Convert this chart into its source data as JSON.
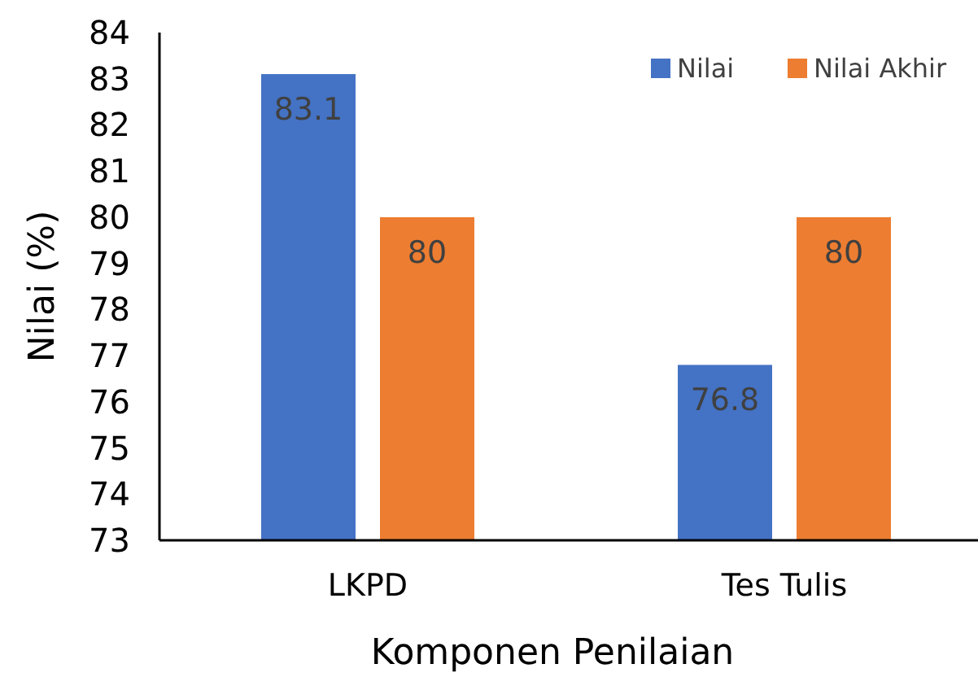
{
  "chart_data": {
    "type": "bar",
    "xlabel": "Komponen Penilaian",
    "ylabel": "Nilai (%)",
    "categories": [
      "LKPD",
      "Tes Tulis"
    ],
    "series": [
      {
        "name": "Nilai",
        "color": "#4472c4",
        "values": [
          83.1,
          76.8
        ]
      },
      {
        "name": "Nilai Akhir",
        "color": "#ed7d31",
        "values": [
          80,
          80
        ]
      }
    ],
    "ylim": [
      73,
      84
    ],
    "yticks": [
      73,
      74,
      75,
      76,
      77,
      78,
      79,
      80,
      81,
      82,
      83,
      84
    ],
    "grid": false,
    "legend": "top right",
    "data_labels": true
  }
}
